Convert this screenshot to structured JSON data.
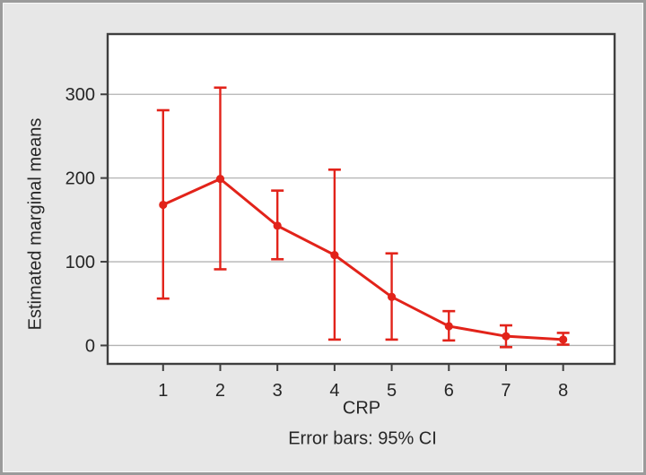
{
  "figure": {
    "background_color": "#e7e7e7",
    "outer_frame_color": "#9b9b9b",
    "plot_frame_color": "#3f3f3f",
    "gridline_color": "#b3b3b3",
    "text_color": "#262626"
  },
  "chart_data": {
    "type": "line",
    "title": "",
    "xlabel": "CRP",
    "ylabel": "Estimated marginal means",
    "caption": "Error bars: 95% CI",
    "legend_position": "none",
    "grid": "horizontal",
    "plot_bg": "#ffffff",
    "gridline_color": "#b3b3b3",
    "frame_color": "#3f3f3f",
    "xticks": [
      1,
      2,
      3,
      4,
      5,
      6,
      7,
      8
    ],
    "yticks": [
      0,
      100,
      200,
      300
    ],
    "xlim": [
      0.03,
      8.9
    ],
    "ylim": [
      -22,
      372
    ],
    "series": [
      {
        "name": "Estimated marginal means of CRP",
        "color": "#e2231a",
        "x": [
          1,
          2,
          3,
          4,
          5,
          6,
          7,
          8
        ],
        "y": [
          168,
          199,
          143,
          108,
          58,
          23,
          11,
          7
        ],
        "ci_lower": [
          56,
          91,
          103,
          7,
          7,
          6,
          -2,
          1
        ],
        "ci_upper": [
          281,
          308,
          185,
          210,
          110,
          41,
          24,
          15
        ]
      }
    ]
  }
}
